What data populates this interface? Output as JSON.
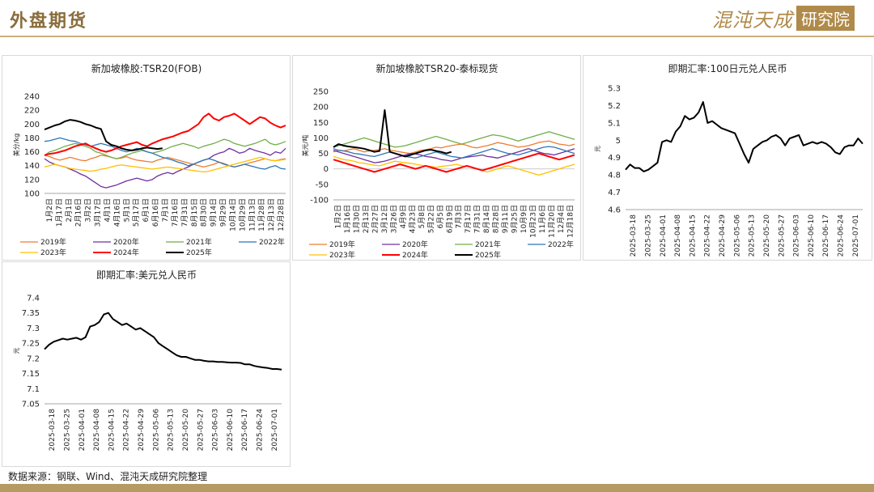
{
  "header": {
    "title": "外盘期货",
    "logo_text": "混沌天成",
    "logo_box": "研究院"
  },
  "footer": {
    "source": "数据来源：钢联、Wind、混沌天成研究院整理"
  },
  "colors": {
    "2019": "#ed7d31",
    "2020": "#7030a0",
    "2021": "#70ad47",
    "2022": "#2e75b6",
    "2023": "#ffc000",
    "2024": "#ff0000",
    "2025": "#000000",
    "single": "#000000"
  },
  "chart_data": [
    {
      "id": "c1",
      "type": "line",
      "title": "新加坡橡胶:TSR20(FOB)",
      "ylabel": "美分/kg",
      "ylim": [
        100,
        240
      ],
      "yticks": [
        100,
        120,
        140,
        160,
        180,
        200,
        220,
        240
      ],
      "xcount": 48,
      "xticks": [
        "1月2日",
        "1月17日",
        "2月1日",
        "2月16日",
        "3月2日",
        "3月17日",
        "4月1日",
        "4月16日",
        "5月1日",
        "5月17日",
        "6月1日",
        "6月16日",
        "7月1日",
        "7月16日",
        "7月31日",
        "8月15日",
        "8月30日",
        "9月14日",
        "9月29日",
        "10月14日",
        "10月29日",
        "11月13日",
        "11月28日",
        "12月13日",
        "12月28日"
      ],
      "series": [
        {
          "name": "2019年",
          "values": [
            155,
            153,
            150,
            148,
            150,
            152,
            150,
            148,
            147,
            150,
            152,
            155,
            154,
            152,
            150,
            151,
            153,
            150,
            148,
            147,
            146,
            145,
            148,
            150,
            152,
            150,
            148,
            146,
            144,
            142,
            140,
            138,
            140,
            142,
            145,
            143,
            140,
            138,
            140,
            142,
            144,
            146,
            148,
            150,
            148,
            147,
            149,
            150
          ]
        },
        {
          "name": "2020年",
          "values": [
            150,
            145,
            142,
            140,
            138,
            135,
            132,
            128,
            125,
            120,
            115,
            110,
            108,
            110,
            112,
            115,
            118,
            120,
            122,
            120,
            118,
            120,
            125,
            128,
            130,
            128,
            132,
            135,
            138,
            142,
            145,
            148,
            150,
            155,
            158,
            160,
            165,
            162,
            158,
            160,
            165,
            162,
            160,
            158,
            155,
            160,
            158,
            165
          ]
        },
        {
          "name": "2021年",
          "values": [
            155,
            160,
            162,
            165,
            168,
            170,
            172,
            170,
            168,
            165,
            160,
            158,
            155,
            152,
            150,
            152,
            155,
            158,
            160,
            162,
            160,
            158,
            160,
            162,
            165,
            168,
            170,
            172,
            170,
            168,
            165,
            168,
            170,
            172,
            175,
            178,
            176,
            172,
            170,
            168,
            170,
            172,
            175,
            178,
            172,
            170,
            172,
            175
          ]
        },
        {
          "name": "2022年",
          "values": [
            175,
            176,
            178,
            180,
            178,
            176,
            175,
            172,
            170,
            168,
            170,
            172,
            170,
            168,
            165,
            162,
            160,
            162,
            165,
            163,
            160,
            158,
            155,
            152,
            150,
            148,
            145,
            143,
            140,
            142,
            145,
            148,
            150,
            148,
            145,
            142,
            140,
            138,
            140,
            142,
            140,
            138,
            136,
            135,
            138,
            140,
            136,
            135
          ]
        },
        {
          "name": "2023年",
          "values": [
            138,
            140,
            142,
            140,
            138,
            136,
            135,
            134,
            133,
            132,
            133,
            135,
            136,
            138,
            140,
            141,
            140,
            139,
            138,
            137,
            136,
            135,
            136,
            137,
            138,
            137,
            136,
            135,
            134,
            133,
            132,
            131,
            132,
            134,
            136,
            138,
            140,
            142,
            144,
            146,
            148,
            150,
            152,
            150,
            148,
            147,
            148,
            149
          ]
        },
        {
          "name": "2024年",
          "values": [
            155,
            157,
            158,
            160,
            162,
            165,
            168,
            170,
            172,
            168,
            165,
            162,
            160,
            162,
            165,
            168,
            170,
            172,
            174,
            170,
            168,
            172,
            175,
            178,
            180,
            182,
            185,
            188,
            190,
            195,
            200,
            210,
            215,
            208,
            205,
            210,
            212,
            215,
            210,
            205,
            200,
            205,
            210,
            208,
            202,
            198,
            195,
            198
          ]
        },
        {
          "name": "2025年",
          "values": [
            192,
            195,
            198,
            200,
            204,
            206,
            205,
            203,
            200,
            198,
            195,
            193,
            175,
            170,
            168,
            165,
            163,
            162,
            163,
            165,
            166,
            165,
            164,
            165
          ]
        }
      ]
    },
    {
      "id": "c2",
      "type": "line",
      "title": "新加坡橡胶TSR20-泰标现货",
      "ylabel": "美元/吨",
      "ylim": [
        -100,
        250
      ],
      "yticks": [
        -100,
        -50,
        0,
        50,
        100,
        150,
        200,
        250
      ],
      "xcount": 48,
      "xticks": [
        "1月2日",
        "1月16日",
        "1月30日",
        "2月13日",
        "2月27日",
        "3月12日",
        "3月26日",
        "4月9日",
        "4月23日",
        "5月8日",
        "5月22日",
        "6月5日",
        "6月19日",
        "7月3日",
        "7月17日",
        "7月31日",
        "8月14日",
        "8月28日",
        "9月11日",
        "9月25日",
        "10月9日",
        "10月23日",
        "11月6日",
        "11月20日",
        "12月4日",
        "12月18日"
      ],
      "series": [
        {
          "name": "2019年",
          "values": [
            55,
            60,
            58,
            62,
            65,
            60,
            55,
            58,
            60,
            62,
            65,
            60,
            58,
            55,
            52,
            50,
            55,
            60,
            62,
            65,
            70,
            68,
            72,
            75,
            78,
            80,
            76,
            70,
            68,
            72,
            75,
            80,
            85,
            82,
            78,
            75,
            70,
            72,
            75,
            80,
            85,
            88,
            90,
            85,
            80,
            78,
            75,
            80
          ]
        },
        {
          "name": "2020年",
          "values": [
            60,
            55,
            50,
            45,
            40,
            35,
            30,
            25,
            20,
            22,
            25,
            30,
            35,
            40,
            45,
            50,
            48,
            45,
            40,
            38,
            35,
            30,
            28,
            25,
            30,
            35,
            38,
            40,
            42,
            45,
            40,
            38,
            35,
            40,
            45,
            50,
            55,
            60,
            65,
            60,
            55,
            50,
            48,
            45,
            50,
            55,
            60,
            65
          ]
        },
        {
          "name": "2021年",
          "values": [
            70,
            75,
            80,
            85,
            90,
            95,
            100,
            95,
            90,
            85,
            80,
            75,
            70,
            72,
            75,
            80,
            85,
            90,
            95,
            100,
            105,
            100,
            95,
            90,
            85,
            80,
            85,
            90,
            95,
            100,
            105,
            110,
            108,
            105,
            100,
            95,
            90,
            95,
            100,
            105,
            110,
            115,
            120,
            115,
            110,
            105,
            100,
            95
          ]
        },
        {
          "name": "2022年",
          "values": [
            65,
            60,
            58,
            55,
            50,
            48,
            45,
            42,
            40,
            45,
            50,
            55,
            50,
            45,
            40,
            38,
            35,
            40,
            45,
            50,
            55,
            50,
            45,
            40,
            38,
            35,
            40,
            45,
            50,
            55,
            60,
            65,
            60,
            55,
            50,
            48,
            45,
            50,
            55,
            60,
            65,
            70,
            72,
            70,
            65,
            60,
            55,
            50
          ]
        },
        {
          "name": "2023年",
          "values": [
            40,
            35,
            30,
            28,
            25,
            20,
            18,
            15,
            12,
            10,
            15,
            20,
            25,
            22,
            20,
            18,
            15,
            12,
            10,
            8,
            5,
            8,
            10,
            12,
            15,
            10,
            8,
            5,
            0,
            -5,
            -10,
            -5,
            0,
            5,
            10,
            5,
            0,
            -5,
            -10,
            -15,
            -20,
            -15,
            -10,
            -5,
            0,
            5,
            10,
            15
          ]
        },
        {
          "name": "2024年",
          "values": [
            30,
            25,
            20,
            15,
            10,
            5,
            0,
            -5,
            -10,
            -5,
            0,
            5,
            10,
            15,
            10,
            5,
            0,
            5,
            10,
            5,
            0,
            -5,
            -10,
            -5,
            0,
            5,
            10,
            5,
            0,
            -5,
            0,
            5,
            10,
            15,
            20,
            25,
            30,
            35,
            40,
            45,
            50,
            45,
            40,
            35,
            30,
            35,
            40,
            45
          ]
        },
        {
          "name": "2025年",
          "values": [
            70,
            80,
            75,
            72,
            70,
            68,
            65,
            60,
            55,
            58,
            190,
            55,
            50,
            45,
            40,
            45,
            50,
            55,
            60,
            62,
            58,
            55,
            50,
            55
          ]
        }
      ]
    },
    {
      "id": "c3",
      "type": "line",
      "title": "即期汇率:100日元兑人民币",
      "ylabel": "元",
      "ylim": [
        4.6,
        5.3
      ],
      "yticks": [
        4.6,
        4.7,
        4.8,
        4.9,
        5.0,
        5.1,
        5.2,
        5.3
      ],
      "xticks": [
        "2025-03-18",
        "2025-03-25",
        "2025-04-01",
        "2025-04-08",
        "2025-04-15",
        "2025-04-22",
        "2025-04-29",
        "2025-05-06",
        "2025-05-13",
        "2025-05-20",
        "2025-05-27",
        "2025-06-03",
        "2025-06-10",
        "2025-06-17",
        "2025-06-24",
        "2025-07-01"
      ],
      "series": [
        {
          "name": "",
          "values": [
            4.83,
            4.86,
            4.84,
            4.84,
            4.82,
            4.83,
            4.85,
            4.87,
            4.99,
            5.0,
            4.99,
            5.05,
            5.08,
            5.14,
            5.12,
            5.13,
            5.16,
            5.22,
            5.1,
            5.11,
            5.09,
            5.07,
            5.06,
            5.05,
            5.04,
            4.98,
            4.92,
            4.87,
            4.95,
            4.97,
            4.99,
            5.0,
            5.02,
            5.03,
            5.01,
            4.97,
            5.01,
            5.02,
            5.03,
            4.97,
            4.98,
            4.99,
            4.98,
            4.99,
            4.98,
            4.96,
            4.93,
            4.92,
            4.96,
            4.97,
            4.97,
            5.01,
            4.98
          ]
        }
      ]
    },
    {
      "id": "c4",
      "type": "line",
      "title": "即期汇率:美元兑人民币",
      "ylabel": "元",
      "ylim": [
        7.05,
        7.4
      ],
      "yticks": [
        7.05,
        7.1,
        7.15,
        7.2,
        7.25,
        7.3,
        7.35,
        7.4
      ],
      "xticks": [
        "2025-03-18",
        "2025-03-25",
        "2025-04-01",
        "2025-04-08",
        "2025-04-15",
        "2025-04-22",
        "2025-04-29",
        "2025-05-06",
        "2025-05-13",
        "2025-05-20",
        "2025-05-27",
        "2025-06-03",
        "2025-06-10",
        "2025-06-17",
        "2025-06-24",
        "2025-07-01"
      ],
      "series": [
        {
          "name": "",
          "values": [
            7.23,
            7.245,
            7.255,
            7.26,
            7.265,
            7.262,
            7.265,
            7.268,
            7.262,
            7.27,
            7.305,
            7.31,
            7.32,
            7.345,
            7.35,
            7.33,
            7.32,
            7.31,
            7.315,
            7.305,
            7.295,
            7.3,
            7.29,
            7.28,
            7.27,
            7.25,
            7.24,
            7.23,
            7.22,
            7.21,
            7.205,
            7.205,
            7.2,
            7.195,
            7.195,
            7.192,
            7.19,
            7.19,
            7.188,
            7.188,
            7.187,
            7.186,
            7.186,
            7.185,
            7.18,
            7.18,
            7.175,
            7.172,
            7.17,
            7.168,
            7.165,
            7.165,
            7.163
          ]
        }
      ]
    }
  ]
}
